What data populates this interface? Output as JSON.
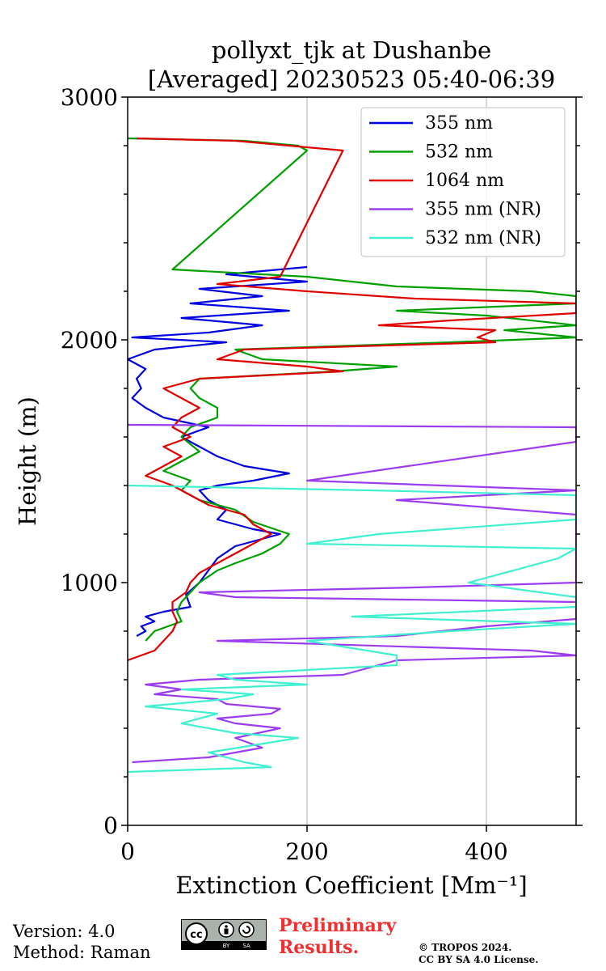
{
  "chart_data": {
    "type": "line",
    "title_line1": "pollyxt_tjk at Dushanbe",
    "title_line2": "[Averaged] 20230523 05:40-06:39",
    "xlabel": "Extinction Coefficient [Mm⁻¹]",
    "ylabel": "Height (m)",
    "xlim": [
      0,
      500
    ],
    "ylim": [
      0,
      3000
    ],
    "xticks": [
      0,
      200,
      400
    ],
    "yticks": [
      0,
      1000,
      2000,
      3000
    ],
    "grid": "vertical",
    "legend_position": "top-right",
    "series": [
      {
        "name": "355 nm",
        "color": "#0000e0",
        "points": [
          [
            10,
            780
          ],
          [
            20,
            800
          ],
          [
            15,
            820
          ],
          [
            30,
            840
          ],
          [
            20,
            860
          ],
          [
            40,
            880
          ],
          [
            70,
            900
          ],
          [
            65,
            950
          ],
          [
            80,
            1000
          ],
          [
            90,
            1050
          ],
          [
            100,
            1100
          ],
          [
            120,
            1150
          ],
          [
            150,
            1180
          ],
          [
            170,
            1200
          ],
          [
            140,
            1220
          ],
          [
            100,
            1260
          ],
          [
            110,
            1300
          ],
          [
            90,
            1340
          ],
          [
            80,
            1380
          ],
          [
            100,
            1400
          ],
          [
            140,
            1420
          ],
          [
            180,
            1450
          ],
          [
            130,
            1480
          ],
          [
            100,
            1520
          ],
          [
            80,
            1560
          ],
          [
            60,
            1600
          ],
          [
            90,
            1640
          ],
          [
            40,
            1680
          ],
          [
            20,
            1720
          ],
          [
            5,
            1760
          ],
          [
            15,
            1800
          ],
          [
            10,
            1840
          ],
          [
            20,
            1880
          ],
          [
            0,
            1920
          ],
          [
            30,
            1960
          ],
          [
            110,
            1990
          ],
          [
            5,
            2010
          ],
          [
            90,
            2030
          ],
          [
            150,
            2060
          ],
          [
            60,
            2090
          ],
          [
            180,
            2120
          ],
          [
            70,
            2150
          ],
          [
            150,
            2180
          ],
          [
            80,
            2210
          ],
          [
            200,
            2240
          ],
          [
            110,
            2270
          ],
          [
            200,
            2300
          ]
        ]
      },
      {
        "name": "532 nm",
        "color": "#00a000",
        "points": [
          [
            20,
            760
          ],
          [
            30,
            800
          ],
          [
            60,
            840
          ],
          [
            55,
            880
          ],
          [
            60,
            920
          ],
          [
            70,
            960
          ],
          [
            80,
            1000
          ],
          [
            100,
            1050
          ],
          [
            120,
            1080
          ],
          [
            150,
            1120
          ],
          [
            170,
            1160
          ],
          [
            180,
            1200
          ],
          [
            140,
            1250
          ],
          [
            120,
            1300
          ],
          [
            80,
            1340
          ],
          [
            60,
            1380
          ],
          [
            70,
            1420
          ],
          [
            40,
            1460
          ],
          [
            60,
            1500
          ],
          [
            80,
            1540
          ],
          [
            60,
            1600
          ],
          [
            70,
            1640
          ],
          [
            100,
            1680
          ],
          [
            100,
            1720
          ],
          [
            80,
            1760
          ],
          [
            70,
            1800
          ],
          [
            80,
            1840
          ],
          [
            230,
            1870
          ],
          [
            300,
            1890
          ],
          [
            150,
            1920
          ],
          [
            120,
            1960
          ],
          [
            360,
            1990
          ],
          [
            500,
            2010
          ],
          [
            420,
            2040
          ],
          [
            500,
            2060
          ],
          [
            400,
            2100
          ],
          [
            300,
            2120
          ],
          [
            500,
            2150
          ],
          [
            500,
            2180
          ],
          [
            450,
            2200
          ],
          [
            300,
            2220
          ],
          [
            200,
            2260
          ],
          [
            50,
            2290
          ],
          [
            200,
            2780
          ],
          [
            190,
            2800
          ],
          [
            130,
            2820
          ],
          [
            0,
            2830
          ]
        ]
      },
      {
        "name": "1064 nm",
        "color": "#e00000",
        "points": [
          [
            0,
            680
          ],
          [
            30,
            720
          ],
          [
            40,
            760
          ],
          [
            50,
            800
          ],
          [
            55,
            840
          ],
          [
            50,
            880
          ],
          [
            50,
            920
          ],
          [
            65,
            960
          ],
          [
            70,
            1000
          ],
          [
            80,
            1040
          ],
          [
            100,
            1080
          ],
          [
            120,
            1120
          ],
          [
            140,
            1160
          ],
          [
            160,
            1200
          ],
          [
            140,
            1240
          ],
          [
            130,
            1280
          ],
          [
            90,
            1320
          ],
          [
            70,
            1360
          ],
          [
            50,
            1400
          ],
          [
            20,
            1440
          ],
          [
            40,
            1480
          ],
          [
            60,
            1520
          ],
          [
            40,
            1560
          ],
          [
            70,
            1600
          ],
          [
            50,
            1640
          ],
          [
            60,
            1680
          ],
          [
            80,
            1720
          ],
          [
            60,
            1760
          ],
          [
            40,
            1800
          ],
          [
            80,
            1840
          ],
          [
            240,
            1870
          ],
          [
            200,
            1890
          ],
          [
            100,
            1920
          ],
          [
            130,
            1960
          ],
          [
            410,
            1990
          ],
          [
            390,
            2010
          ],
          [
            410,
            2040
          ],
          [
            280,
            2060
          ],
          [
            360,
            2080
          ],
          [
            500,
            2110
          ],
          [
            500,
            2150
          ],
          [
            320,
            2170
          ],
          [
            200,
            2200
          ],
          [
            100,
            2230
          ],
          [
            170,
            2260
          ],
          [
            240,
            2780
          ],
          [
            180,
            2800
          ],
          [
            120,
            2820
          ],
          [
            10,
            2830
          ]
        ]
      },
      {
        "name": "355 nm (NR)",
        "color": "#9b3cf0",
        "points": [
          [
            5,
            260
          ],
          [
            90,
            280
          ],
          [
            150,
            320
          ],
          [
            120,
            360
          ],
          [
            170,
            400
          ],
          [
            120,
            420
          ],
          [
            100,
            440
          ],
          [
            160,
            460
          ],
          [
            170,
            480
          ],
          [
            110,
            500
          ],
          [
            100,
            520
          ],
          [
            30,
            540
          ],
          [
            60,
            560
          ],
          [
            20,
            580
          ],
          [
            80,
            600
          ],
          [
            240,
            620
          ],
          [
            280,
            660
          ],
          [
            300,
            680
          ],
          [
            500,
            700
          ],
          [
            450,
            720
          ],
          [
            100,
            760
          ],
          [
            300,
            780
          ],
          [
            400,
            820
          ],
          [
            500,
            850
          ],
          [
            500,
            900
          ],
          [
            500,
            920
          ],
          [
            120,
            940
          ],
          [
            80,
            960
          ],
          [
            320,
            980
          ],
          [
            500,
            1000
          ],
          [
            500,
            1040
          ],
          [
            500,
            1090
          ],
          [
            500,
            1160
          ],
          [
            500,
            1220
          ],
          [
            500,
            1280
          ],
          [
            300,
            1340
          ],
          [
            500,
            1380
          ],
          [
            200,
            1420
          ],
          [
            500,
            1580
          ],
          [
            500,
            1640
          ],
          [
            0,
            1650
          ]
        ]
      },
      {
        "name": "532 nm (NR)",
        "color": "#40f0d0",
        "points": [
          [
            0,
            220
          ],
          [
            160,
            240
          ],
          [
            130,
            260
          ],
          [
            90,
            300
          ],
          [
            190,
            360
          ],
          [
            120,
            380
          ],
          [
            60,
            420
          ],
          [
            100,
            460
          ],
          [
            20,
            490
          ],
          [
            110,
            520
          ],
          [
            140,
            540
          ],
          [
            60,
            560
          ],
          [
            200,
            580
          ],
          [
            120,
            600
          ],
          [
            100,
            620
          ],
          [
            300,
            660
          ],
          [
            300,
            700
          ],
          [
            200,
            760
          ],
          [
            360,
            800
          ],
          [
            500,
            830
          ],
          [
            250,
            860
          ],
          [
            500,
            900
          ],
          [
            500,
            940
          ],
          [
            420,
            980
          ],
          [
            380,
            1000
          ],
          [
            480,
            1100
          ],
          [
            500,
            1140
          ],
          [
            200,
            1160
          ],
          [
            280,
            1200
          ],
          [
            500,
            1260
          ],
          [
            500,
            1300
          ],
          [
            500,
            1320
          ],
          [
            500,
            1360
          ],
          [
            270,
            1380
          ],
          [
            0,
            1400
          ]
        ]
      }
    ]
  },
  "footer": {
    "version": "Version: 4.0",
    "method": "Method: Raman",
    "preliminary_line1": "Preliminary",
    "preliminary_line2": "Results.",
    "copyright_line1": "© TROPOS 2024.",
    "copyright_line2": "CC BY SA 4.0 License."
  },
  "license_badge": {
    "left_text": "cc",
    "by": "BY",
    "sa": "SA"
  }
}
